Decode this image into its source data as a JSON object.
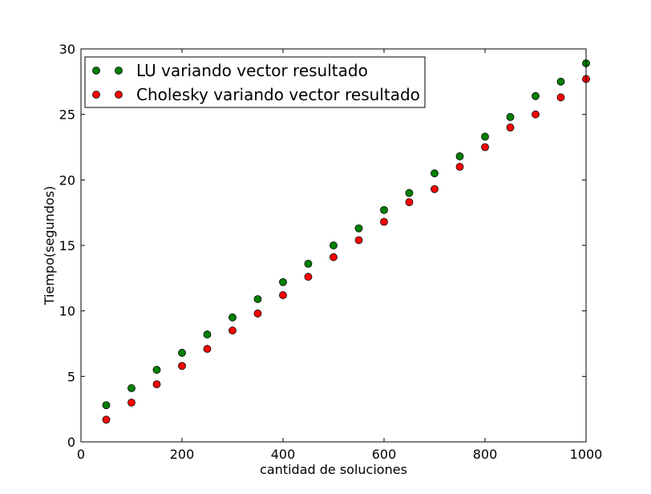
{
  "chart_data": {
    "type": "scatter",
    "title": "",
    "xlabel": "cantidad de soluciones",
    "ylabel": "Tiempo(segundos)",
    "xlim": [
      0,
      1000
    ],
    "ylim": [
      0,
      30
    ],
    "xticks": [
      0,
      200,
      400,
      600,
      800,
      1000
    ],
    "yticks": [
      0,
      5,
      10,
      15,
      20,
      25,
      30
    ],
    "grid": false,
    "legend_position": "top-left",
    "x": [
      50,
      100,
      150,
      200,
      250,
      300,
      350,
      400,
      450,
      500,
      550,
      600,
      650,
      700,
      750,
      800,
      850,
      900,
      950,
      1000
    ],
    "series": [
      {
        "name": "LU variando vector resultado",
        "color": "#008000",
        "values": [
          2.8,
          4.1,
          5.5,
          6.8,
          8.2,
          9.5,
          10.9,
          12.2,
          13.6,
          15.0,
          16.3,
          17.7,
          19.0,
          20.5,
          21.8,
          23.3,
          24.8,
          26.4,
          27.5,
          28.9
        ]
      },
      {
        "name": "Cholesky variando vector resultado",
        "color": "#ff0000",
        "values": [
          1.7,
          3.0,
          4.4,
          5.8,
          7.1,
          8.5,
          9.8,
          11.2,
          12.6,
          14.1,
          15.4,
          16.8,
          18.3,
          19.3,
          21.0,
          22.5,
          24.0,
          25.0,
          26.3,
          27.7
        ]
      }
    ]
  }
}
